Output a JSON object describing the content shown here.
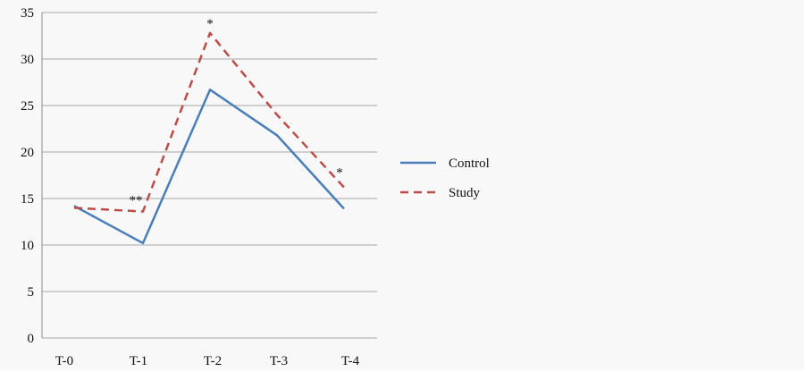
{
  "chart_data": {
    "type": "line",
    "title": "",
    "xlabel": "",
    "ylabel": "",
    "categories": [
      "T-0",
      "T-1",
      "T-2",
      "T-3",
      "T-4"
    ],
    "ylim": [
      0,
      35
    ],
    "yticks": [
      0,
      5,
      10,
      15,
      20,
      25,
      30,
      35
    ],
    "grid": true,
    "legend_position": "right",
    "series": [
      {
        "name": "Control",
        "values": [
          14.2,
          10.2,
          26.7,
          21.8,
          13.9
        ],
        "color": "#4a7ebb",
        "style": "solid"
      },
      {
        "name": "Study",
        "values": [
          14.0,
          13.6,
          32.8,
          24.0,
          16.2
        ],
        "color": "#be4b48",
        "style": "dashed"
      }
    ],
    "annotations": [
      {
        "category": "T-1",
        "text": "**"
      },
      {
        "category": "T-2",
        "text": "*"
      },
      {
        "category": "T-4",
        "text": "*"
      }
    ]
  }
}
